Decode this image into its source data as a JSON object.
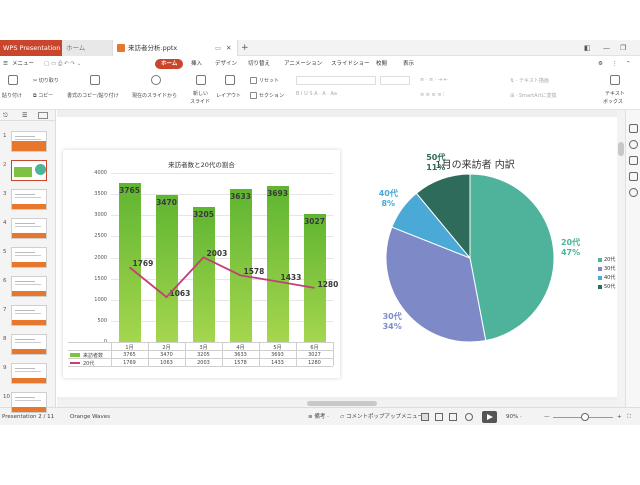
{
  "app": {
    "tabs": [
      "WPS Presentation",
      "ホーム",
      "来訪者分析.pptx"
    ],
    "new_tab": "+"
  },
  "menu": {
    "menu_label": "メニュー",
    "items": [
      "ホーム",
      "挿入",
      "デザイン",
      "切り替え",
      "アニメーション",
      "スライドショー",
      "校閲",
      "表示"
    ]
  },
  "ribbon": {
    "paste": "貼り付け",
    "cut": "切り取り",
    "copy": "コピー",
    "format_painter": "書式のコピー/貼り付け",
    "from_current": "現在のスライドから",
    "new_slide": "新しい",
    "new_slide2": "スライド",
    "layout": "レイアウト",
    "reset": "リセット",
    "section": "セクション",
    "text_box": "テキスト",
    "text_box2": "ボックス",
    "text_box_menu": "テキスト描画",
    "smartart": "SmartArtに変換"
  },
  "thumbnails": [
    "1",
    "2",
    "3",
    "4",
    "5",
    "6",
    "7",
    "8",
    "9",
    "10"
  ],
  "chart_data": [
    {
      "type": "bar",
      "title": "来訪者数と20代の割合",
      "categories": [
        "1月",
        "2月",
        "3月",
        "4月",
        "5月",
        "6月"
      ],
      "series": [
        {
          "name": "来訪者数",
          "type": "bar",
          "color": "#7dc241",
          "values": [
            3765,
            3470,
            3205,
            3633,
            3693,
            3027
          ]
        },
        {
          "name": "20代",
          "type": "line",
          "color": "#c2407a",
          "values": [
            1769,
            1063,
            2003,
            1578,
            1433,
            1280
          ]
        }
      ],
      "yticks": [
        "0",
        "500",
        "1000",
        "1500",
        "2000",
        "2500",
        "3000",
        "3500",
        "4000"
      ],
      "ylim": [
        0,
        4000
      ],
      "data_table": true
    },
    {
      "type": "pie",
      "title": "1月の来訪者 内訳",
      "slices": [
        {
          "name": "20代",
          "value": 47,
          "label": "20代",
          "pct": "47%",
          "color": "#4fb29b"
        },
        {
          "name": "30代",
          "value": 34,
          "label": "30代",
          "pct": "34%",
          "color": "#7e89c8"
        },
        {
          "name": "40代",
          "value": 8,
          "label": "40代",
          "pct": "8%",
          "color": "#4aa9d6"
        },
        {
          "name": "50代",
          "value": 11,
          "label": "50代",
          "pct": "11%",
          "color": "#2e6b5a"
        }
      ],
      "legend": [
        "20代",
        "30代",
        "40代",
        "50代"
      ],
      "legend_position": "right"
    }
  ],
  "status": {
    "slide_info": "Presentation  2 / 11",
    "theme": "Orange Waves",
    "notes": "備考",
    "comment": "コメントポップアップメニュー",
    "zoom": "90%"
  },
  "colors": {
    "accent": "#c9462c",
    "doc_icon": "#e8772e"
  }
}
